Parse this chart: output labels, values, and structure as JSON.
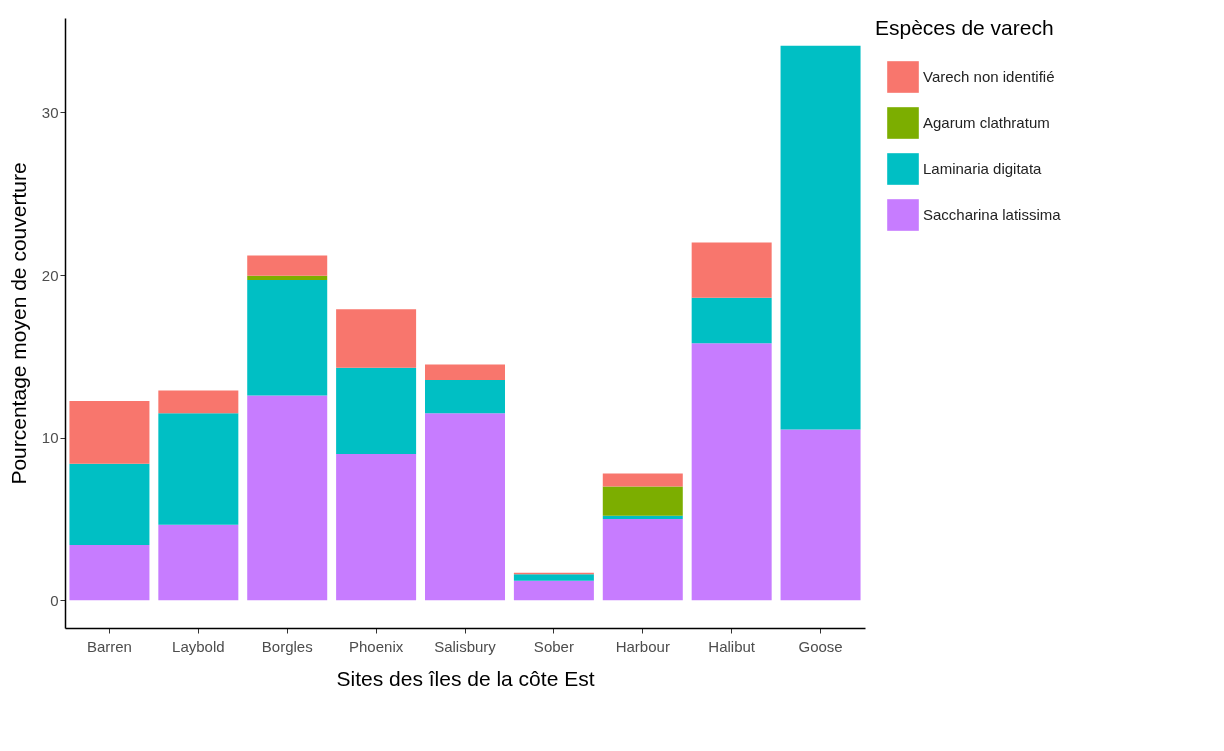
{
  "chart_data": {
    "type": "bar",
    "stacked": true,
    "xlabel": "Sites des îles de la côte Est",
    "ylabel": "Pourcentage moyen de couverture",
    "legend_title": "Espèces de varech",
    "legend": "right",
    "grid": false,
    "categories": [
      "Barren",
      "Laybold",
      "Borgles",
      "Phoenix",
      "Salisbury",
      "Sober",
      "Harbour",
      "Halibut",
      "Goose"
    ],
    "ylim": [
      -1.7,
      35.8
    ],
    "yticks": [
      0,
      10,
      20,
      30
    ],
    "series": [
      {
        "name": "Saccharina latissima",
        "color": "#c77cff",
        "values": [
          3.4,
          4.65,
          12.6,
          9.0,
          11.5,
          1.2,
          5.0,
          15.8,
          10.5
        ]
      },
      {
        "name": "Laminaria digitata",
        "color": "#00bfc4",
        "values": [
          5.0,
          6.85,
          7.1,
          5.3,
          2.05,
          0.4,
          0.2,
          2.8,
          23.6
        ]
      },
      {
        "name": "Agarum clathratum",
        "color": "#7cae00",
        "values": [
          0,
          0,
          0.25,
          0,
          0,
          0,
          1.8,
          0,
          0
        ]
      },
      {
        "name": "Varech non identifié",
        "color": "#f8766d",
        "values": [
          3.85,
          1.4,
          1.25,
          3.6,
          0.95,
          0.1,
          0.8,
          3.4,
          0
        ]
      }
    ]
  }
}
